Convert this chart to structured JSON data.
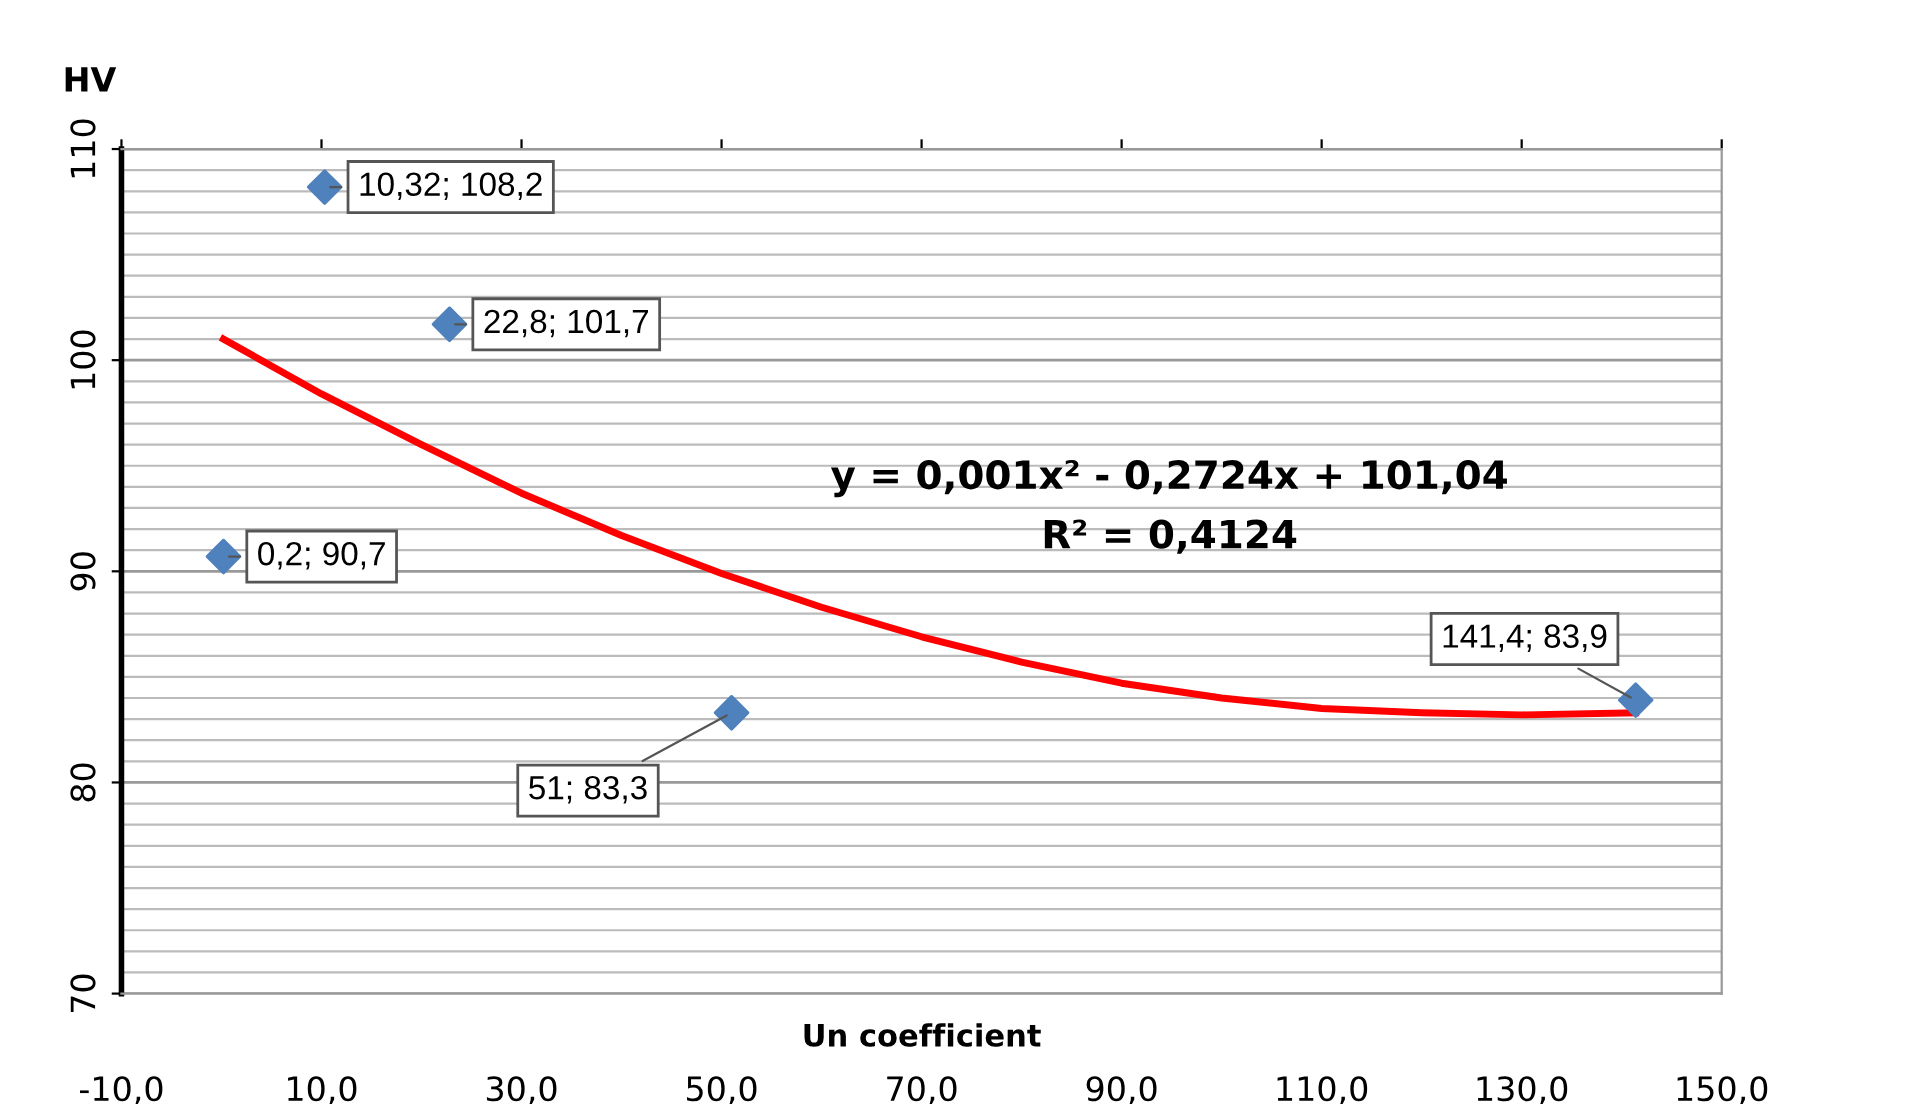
{
  "chart_data": {
    "type": "scatter",
    "xlabel": "Un coefficient",
    "ylabel": "HV",
    "xlim": [
      -10,
      150
    ],
    "xticks": [
      {
        "value": -10,
        "label": "-10,0"
      },
      {
        "value": 10,
        "label": "10,0"
      },
      {
        "value": 30,
        "label": "30,0"
      },
      {
        "value": 50,
        "label": "50,0"
      },
      {
        "value": 70,
        "label": "70,0"
      },
      {
        "value": 90,
        "label": "90,0"
      },
      {
        "value": 110,
        "label": "110,0"
      },
      {
        "value": 130,
        "label": "130,0"
      },
      {
        "value": 150,
        "label": "150,0"
      }
    ],
    "ylim": [
      70,
      110
    ],
    "yticks": [
      70,
      80,
      90,
      100,
      110
    ],
    "grid": "y",
    "marker": "diamond",
    "legend": false,
    "series": [
      {
        "color": "#4f81bd",
        "x": [
          0.2,
          10.32,
          22.8,
          51,
          141.4
        ],
        "values": [
          90.7,
          108.2,
          101.7,
          83.3,
          83.9
        ],
        "value_labels": [
          "0,2; 90,7",
          "10,32; 108,2",
          "22,8; 101,7",
          "51; 83,3",
          "141,4; 83,9"
        ]
      },
      {
        "type": "line",
        "color": "#ff0000",
        "marker": "none",
        "x": [
          0.2,
          10,
          20,
          30,
          40,
          50,
          60,
          70,
          80,
          90,
          100,
          110,
          120,
          130,
          141.4
        ],
        "values": [
          101.0,
          98.4,
          96.0,
          93.7,
          91.7,
          89.9,
          88.3,
          86.9,
          85.7,
          84.7,
          84.0,
          83.5,
          83.3,
          83.2,
          83.3
        ]
      }
    ],
    "annotations": [
      "y = 0,001x² - 0,2724x + 101,04",
      "R² = 0,4124"
    ]
  }
}
